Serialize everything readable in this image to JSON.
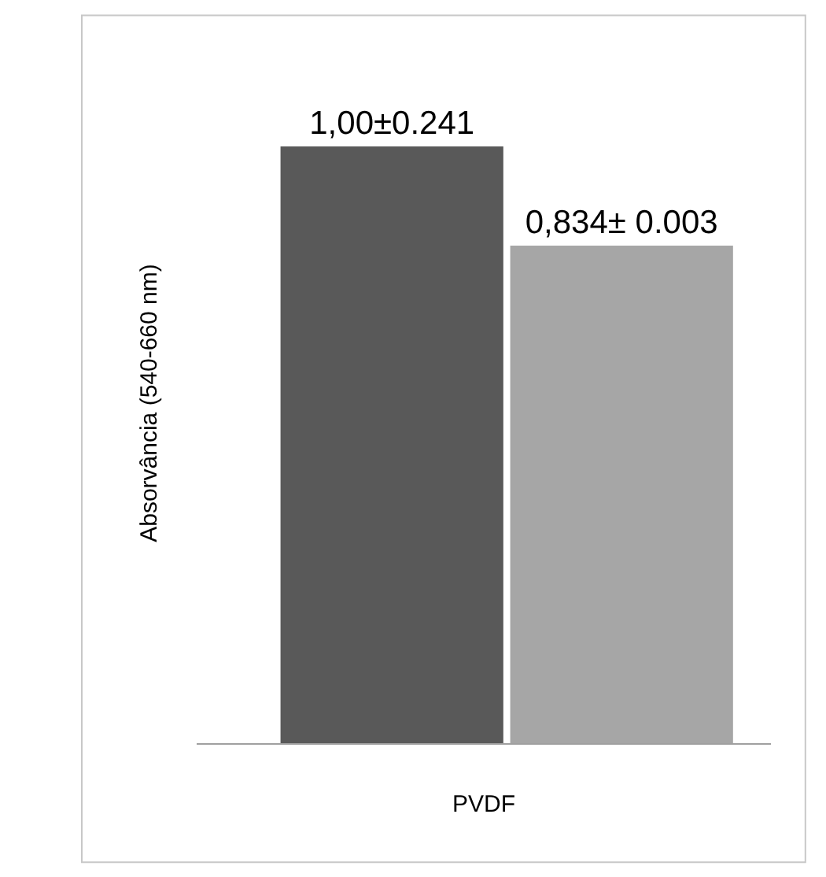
{
  "chart_data": {
    "type": "bar",
    "xlabel": "PVDF",
    "ylabel": "Absorvância (540-660 nm)",
    "categories": [
      null,
      null
    ],
    "values": [
      1.0,
      0.834
    ],
    "colors": [
      "#595959",
      "#a6a6a6"
    ],
    "value_labels": [
      "1,00±0.241",
      "0,834± 0.003"
    ],
    "legend": false
  }
}
